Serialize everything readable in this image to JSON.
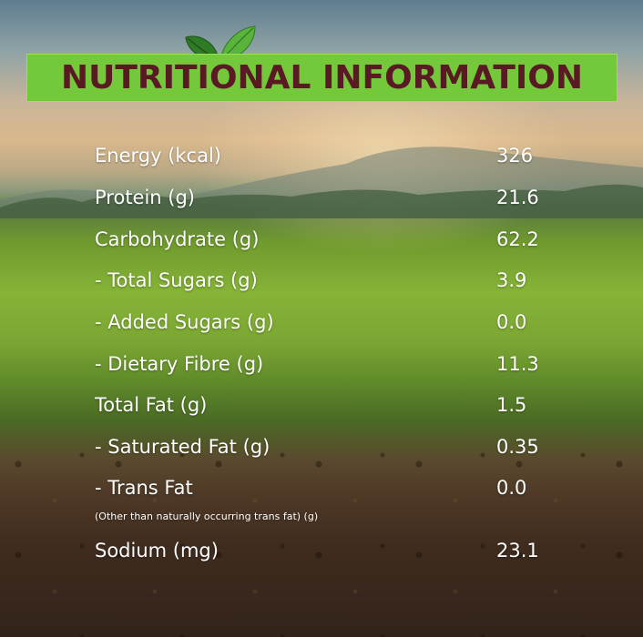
{
  "title": "NUTRITIONAL INFORMATION",
  "icon": "leaf-icon",
  "colors": {
    "banner": "#74c93a",
    "title_text": "#5a1a24",
    "row_text": "#ffffff",
    "leaf_dark": "#2f7a24",
    "leaf_light": "#5ab33a"
  },
  "rows": [
    {
      "label": "Energy (kcal)",
      "value": "326"
    },
    {
      "label": "Protein (g)",
      "value": "21.6"
    },
    {
      "label": "Carbohydrate (g)",
      "value": "62.2"
    },
    {
      "label": "- Total Sugars (g)",
      "value": "3.9"
    },
    {
      "label": "- Added Sugars (g)",
      "value": "0.0"
    },
    {
      "label": "- Dietary Fibre (g)",
      "value": "11.3"
    },
    {
      "label": "Total Fat (g)",
      "value": "1.5"
    },
    {
      "label": "- Saturated Fat (g)",
      "value": "0.35"
    },
    {
      "label": "- Trans Fat",
      "value": "0.0",
      "note": "(Other than naturally occurring trans fat) (g)"
    },
    {
      "label": "Sodium (mg)",
      "value": "23.1"
    }
  ]
}
